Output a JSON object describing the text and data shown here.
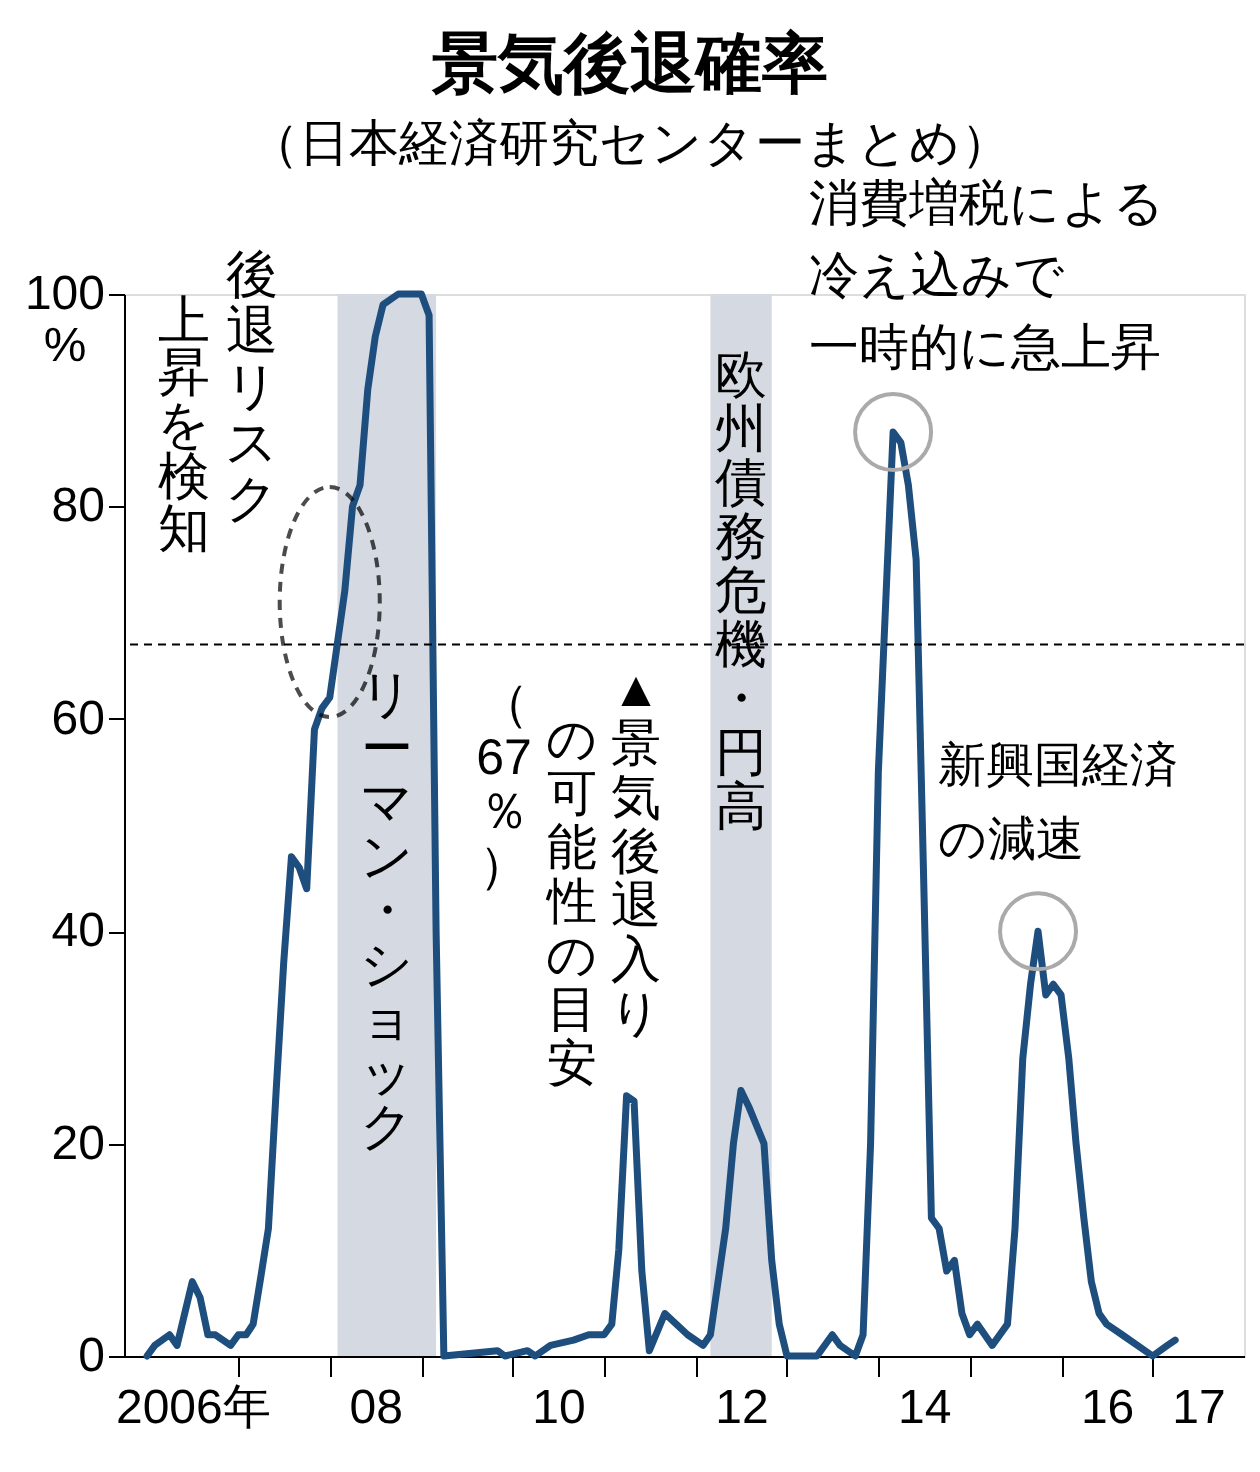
{
  "chart_data": {
    "type": "line",
    "title": "景気後退確率",
    "subtitle": "（日本経済研究センターまとめ）",
    "ylabel": "%",
    "x": [
      "2006-01",
      "2006-02",
      "2006-04",
      "2006-05",
      "2006-07",
      "2006-08",
      "2006-09",
      "2006-10",
      "2006-12",
      "2007-01",
      "2007-02",
      "2007-03",
      "2007-04",
      "2007-05",
      "2007-06",
      "2007-07",
      "2007-08",
      "2007-09",
      "2007-10",
      "2007-11",
      "2007-12",
      "2008-01",
      "2008-03",
      "2008-04",
      "2008-05",
      "2008-06",
      "2008-07",
      "2008-08",
      "2008-10",
      "2009-01",
      "2009-02",
      "2009-03",
      "2009-04",
      "2009-11",
      "2009-12",
      "2010-03",
      "2010-04",
      "2010-06",
      "2010-09",
      "2010-11",
      "2011-01",
      "2011-02",
      "2011-03",
      "2011-04",
      "2011-05",
      "2011-06",
      "2011-07",
      "2011-09",
      "2011-12",
      "2012-02",
      "2012-03",
      "2012-05",
      "2012-06",
      "2012-07",
      "2012-08",
      "2012-10",
      "2012-11",
      "2012-12",
      "2013-01",
      "2013-05",
      "2013-07",
      "2013-08",
      "2013-10",
      "2013-11",
      "2013-12",
      "2014-01",
      "2014-03",
      "2014-04",
      "2014-05",
      "2014-06",
      "2014-07",
      "2014-08",
      "2014-09",
      "2014-10",
      "2014-11",
      "2014-12",
      "2015-01",
      "2015-02",
      "2015-04",
      "2015-06",
      "2015-07",
      "2015-08",
      "2015-09",
      "2015-10",
      "2015-11",
      "2015-12",
      "2016-01",
      "2016-02",
      "2016-03",
      "2016-04",
      "2016-05",
      "2016-06",
      "2016-07",
      "2016-09",
      "2016-11",
      "2017-01",
      "2017-03",
      "2017-04"
    ],
    "series": [
      {
        "color": "#1d4e7e",
        "values": [
          0,
          1,
          2,
          1,
          7,
          5.5,
          2,
          2,
          1,
          2,
          2,
          3,
          7.5,
          12,
          25,
          37,
          47,
          46,
          44,
          59,
          61,
          62,
          72,
          80,
          82,
          91,
          96,
          99,
          100,
          100,
          98,
          40,
          0,
          0.5,
          0,
          0.5,
          0,
          1,
          1.5,
          2,
          2,
          3,
          10,
          24.5,
          24,
          8,
          0.5,
          4,
          2,
          1,
          2,
          12,
          20,
          25,
          23.5,
          20,
          9,
          3,
          0,
          0,
          2,
          1,
          0,
          2,
          20,
          55,
          87,
          86,
          82,
          75,
          45,
          13,
          12,
          8,
          9,
          4,
          2,
          3,
          1,
          3,
          12,
          28,
          35,
          40,
          34,
          35,
          34,
          28,
          20,
          13,
          7,
          4,
          3,
          2,
          1,
          0,
          1,
          1.5
        ]
      }
    ],
    "xlim": [
      "2005-10",
      "2018-01"
    ],
    "xticks": [
      {
        "value": "2007-01",
        "label": null
      },
      {
        "value": "2008-01",
        "label": null
      },
      {
        "value": "2009-01",
        "label": null
      },
      {
        "value": "2010-01",
        "label": null
      },
      {
        "value": "2011-01",
        "label": null
      },
      {
        "value": "2012-01",
        "label": null
      },
      {
        "value": "2013-01",
        "label": null
      },
      {
        "value": "2014-01",
        "label": null
      },
      {
        "value": "2015-01",
        "label": null
      },
      {
        "value": "2016-01",
        "label": null
      },
      {
        "value": "2017-01",
        "label": null
      },
      {
        "value": "2006-07",
        "label": "2006年"
      },
      {
        "value": "2008-07",
        "label": "08"
      },
      {
        "value": "2010-07",
        "label": "10"
      },
      {
        "value": "2012-07",
        "label": "12"
      },
      {
        "value": "2014-07",
        "label": "14"
      },
      {
        "value": "2016-07",
        "label": "16"
      },
      {
        "value": "2017-07",
        "label": "17"
      }
    ],
    "ylim": [
      0,
      100
    ],
    "yticks": [
      0,
      20,
      40,
      60,
      80,
      100
    ],
    "ref_lines": [
      {
        "axis": "y",
        "value": 67,
        "label": "▲景気後退入り",
        "color": "#000000",
        "line_style": "dashed"
      }
    ],
    "bands": [
      {
        "axis": "x",
        "from": "2008-02",
        "to": "2009-03",
        "label": "リーマン・ショック",
        "color": "#d5d9e2"
      },
      {
        "axis": "x",
        "from": "2012-03",
        "to": "2012-11",
        "label": "欧州債務危機・円高",
        "color": "#d5d9e2"
      }
    ],
    "annotations": [
      {
        "text": "後退リスク",
        "x": "2008-01",
        "y": 71
      },
      "上昇を検知",
      "の可能性の目安",
      "（67％）",
      {
        "text": "消費増税による冷え込みで一時的に急上昇",
        "x": "2014-03",
        "y": 87
      },
      {
        "text": "新興国経済の減速",
        "x": "2015-10",
        "y": 40
      }
    ],
    "grid": false,
    "marker": "none",
    "line_style": "solid"
  }
}
